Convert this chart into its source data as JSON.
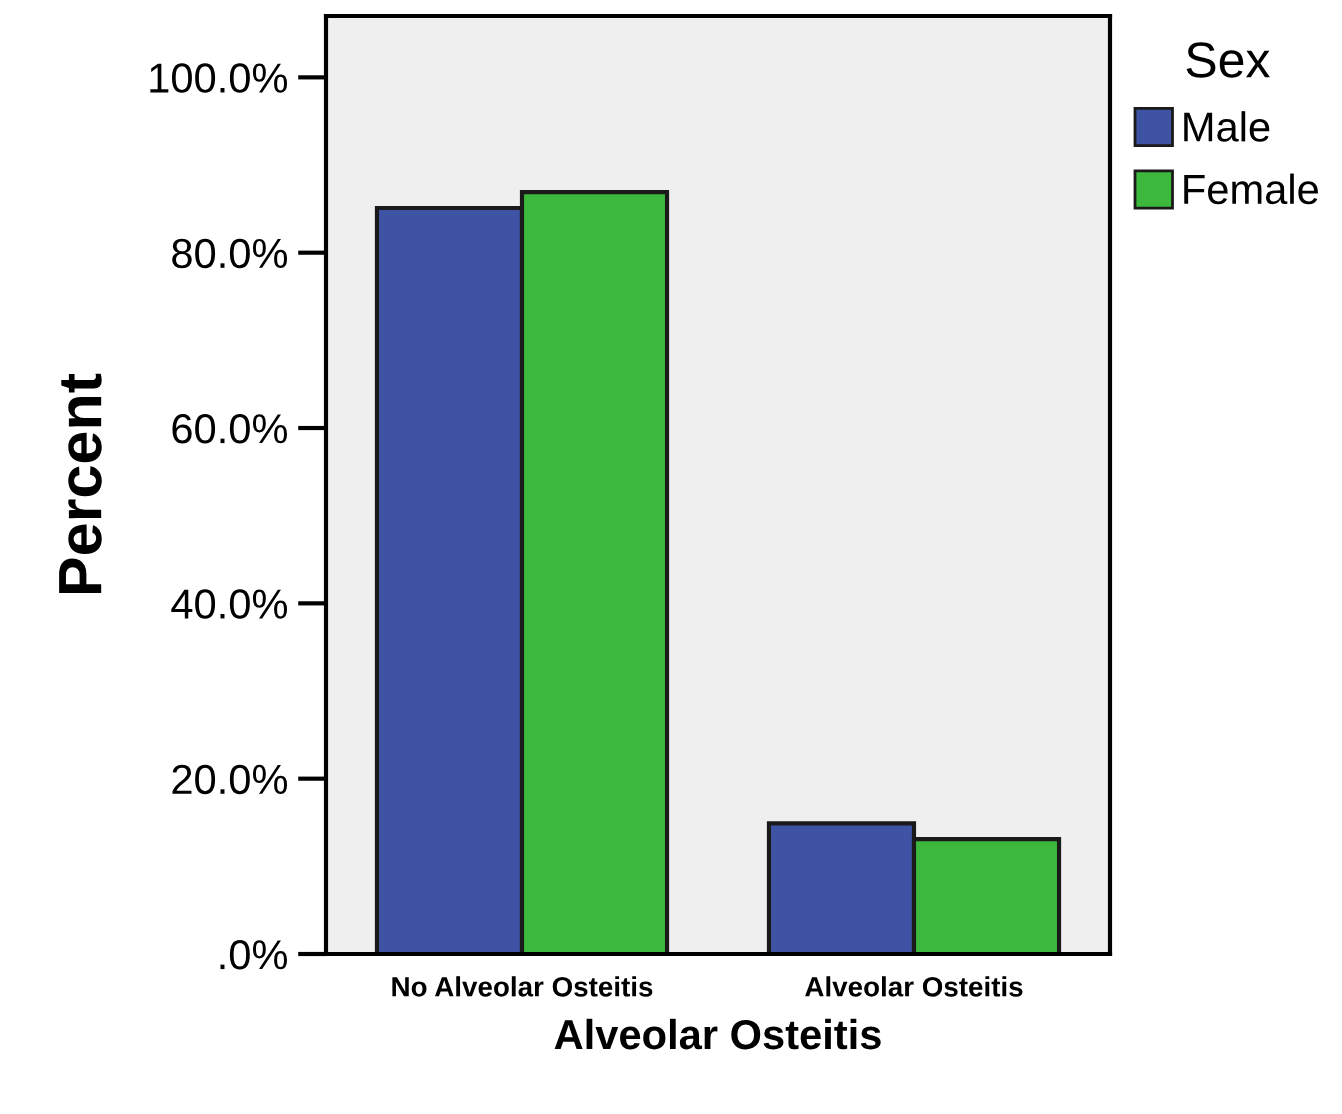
{
  "chart_data": {
    "type": "bar",
    "xlabel": "Alveolar Osteitis",
    "ylabel": "Percent",
    "legend_title": "Sex",
    "categories": [
      "No Alveolar Osteitis",
      "Alveolar Osteitis"
    ],
    "series": [
      {
        "name": "Male",
        "color": "#3e53a4",
        "values": [
          85.1,
          14.9
        ]
      },
      {
        "name": "Female",
        "color": "#3cb93c",
        "values": [
          86.9,
          13.1
        ]
      }
    ],
    "ylim": [
      0,
      107
    ],
    "yticks": [
      {
        "value": 0,
        "label": ".0%"
      },
      {
        "value": 20,
        "label": "20.0%"
      },
      {
        "value": 40,
        "label": "40.0%"
      },
      {
        "value": 60,
        "label": "60.0%"
      },
      {
        "value": 80,
        "label": "80.0%"
      },
      {
        "value": 100,
        "label": "100.0%"
      }
    ],
    "grid": false,
    "legend": "top right"
  }
}
